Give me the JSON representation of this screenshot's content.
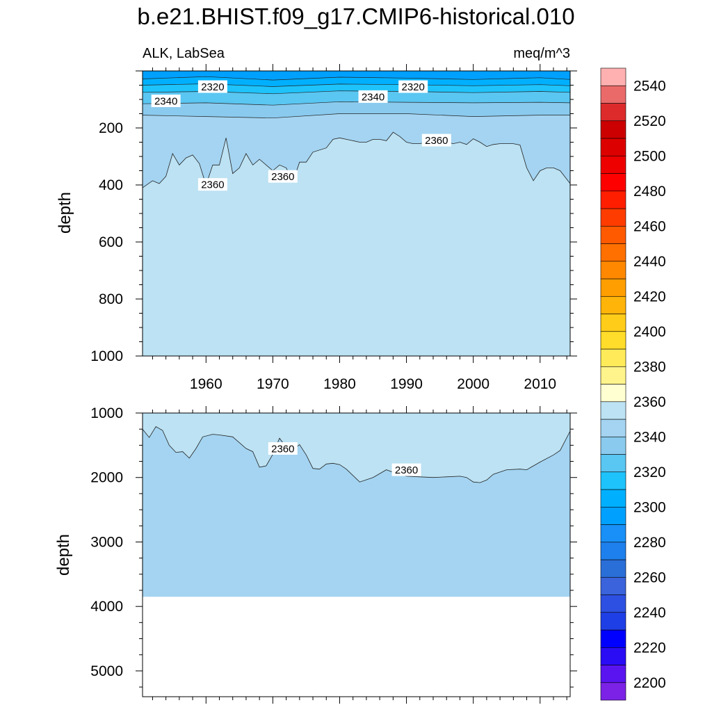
{
  "figure": {
    "title": "b.e21.BHIST.f09_g17.CMIP6-historical.010",
    "left_string": "ALK, LabSea",
    "right_string": "meq/m^3"
  },
  "colorbar": {
    "levels": [
      2200,
      2210,
      2220,
      2230,
      2240,
      2250,
      2260,
      2270,
      2280,
      2290,
      2300,
      2310,
      2320,
      2330,
      2340,
      2350,
      2360,
      2370,
      2380,
      2390,
      2400,
      2410,
      2420,
      2430,
      2440,
      2450,
      2460,
      2470,
      2480,
      2490,
      2500,
      2510,
      2520,
      2530,
      2540,
      2550
    ],
    "labels": [
      "2200",
      "2220",
      "2240",
      "2260",
      "2280",
      "2300",
      "2320",
      "2340",
      "2360",
      "2380",
      "2400",
      "2420",
      "2440",
      "2460",
      "2480",
      "2500",
      "2520",
      "2540"
    ],
    "colors": [
      "#7b22e6",
      "#5a14f0",
      "#2a0cf5",
      "#0000ff",
      "#1f3fe6",
      "#2d50e2",
      "#3a63dc",
      "#2a6ed8",
      "#1e80ec",
      "#1890f7",
      "#00a0ff",
      "#00b0ff",
      "#1ec3fb",
      "#5ac6f2",
      "#8acaee",
      "#a4d4f1",
      "#bce2f3",
      "#ffffd2",
      "#fff48c",
      "#ffeb5a",
      "#ffdd2a",
      "#ffcc1a",
      "#ffb40a",
      "#ff9e00",
      "#ff8800",
      "#ff7000",
      "#ff5a00",
      "#ff3c00",
      "#ff1e00",
      "#ff0000",
      "#ee0000",
      "#dd0000",
      "#cc0000",
      "#dd2b2b",
      "#ea6a6a",
      "#ffb0b0"
    ]
  },
  "chart_data": [
    {
      "type": "heatmap",
      "subtype": "depth-time contour (filled)",
      "xlabel": "",
      "ylabel": "depth",
      "xlim": [
        1950.5,
        2014.5
      ],
      "ylim": [
        1000,
        0
      ],
      "yreversed": true,
      "xticks": [
        1960,
        1970,
        1980,
        1990,
        2000,
        2010
      ],
      "xtick_labels": [
        "1960",
        "1970",
        "1980",
        "1990",
        "2000",
        "2010"
      ],
      "yticks": [
        200,
        400,
        600,
        800,
        1000
      ],
      "ytick_labels": [
        "200",
        "400",
        "600",
        "800",
        "1000"
      ],
      "background_level": 2360,
      "layers": [
        {
          "value": 2350,
          "years": [
            1950.5,
            1960,
            1970,
            1980,
            1990,
            2000,
            2010,
            2014.5
          ],
          "depth": [
            155,
            160,
            165,
            150,
            150,
            160,
            155,
            155
          ]
        },
        {
          "value": 2340,
          "years": [
            1950.5,
            1960,
            1970,
            1980,
            1990,
            2000,
            2010,
            2014.5
          ],
          "depth": [
            115,
            112,
            120,
            108,
            110,
            112,
            110,
            112
          ]
        },
        {
          "value": 2330,
          "years": [
            1950.5,
            1960,
            1970,
            1980,
            1990,
            2000,
            2010,
            2014.5
          ],
          "depth": [
            75,
            72,
            80,
            70,
            72,
            76,
            72,
            75
          ]
        },
        {
          "value": 2320,
          "years": [
            1950.5,
            1960,
            1970,
            1980,
            1990,
            2000,
            2010,
            2014.5
          ],
          "depth": [
            50,
            45,
            55,
            46,
            48,
            52,
            48,
            52
          ]
        },
        {
          "value": 2310,
          "years": [
            1950.5,
            1960,
            1970,
            1980,
            1990,
            2000,
            2010,
            2014.5
          ],
          "depth": [
            28,
            20,
            32,
            22,
            25,
            30,
            24,
            30
          ]
        }
      ],
      "contour_2360": {
        "years": [
          1950.5,
          1952,
          1953,
          1954,
          1955,
          1956,
          1957,
          1958,
          1959,
          1960,
          1961,
          1962,
          1963,
          1964,
          1965,
          1966,
          1967,
          1968,
          1969,
          1970,
          1971,
          1972,
          1973,
          1974,
          1975,
          1976,
          1978,
          1979,
          1980,
          1981,
          1982,
          1983,
          1984,
          1985,
          1986,
          1987,
          1988,
          1989,
          1990,
          1991,
          1992,
          1993,
          1994,
          1995,
          1996,
          1997,
          1998,
          1999,
          2000,
          2001,
          2002,
          2003,
          2004,
          2005,
          2006,
          2007,
          2008,
          2009,
          2010,
          2011,
          2012,
          2013,
          2014.5
        ],
        "depth": [
          410,
          385,
          395,
          370,
          290,
          330,
          305,
          295,
          325,
          400,
          330,
          330,
          235,
          360,
          340,
          290,
          330,
          310,
          330,
          350,
          330,
          340,
          390,
          320,
          320,
          285,
          270,
          240,
          235,
          240,
          245,
          250,
          250,
          240,
          240,
          245,
          215,
          230,
          250,
          255,
          255,
          250,
          245,
          240,
          250,
          255,
          250,
          258,
          238,
          250,
          265,
          258,
          255,
          255,
          255,
          260,
          340,
          385,
          350,
          340,
          340,
          350,
          395
        ]
      },
      "contour_labels": [
        {
          "text": "2320",
          "year": 1961,
          "depth": 55
        },
        {
          "text": "2340",
          "year": 1954,
          "depth": 105
        },
        {
          "text": "2340",
          "year": 1985,
          "depth": 90
        },
        {
          "text": "2320",
          "year": 1991,
          "depth": 55
        },
        {
          "text": "2360",
          "year": 1961,
          "depth": 398
        },
        {
          "text": "2360",
          "year": 1971.5,
          "depth": 370
        },
        {
          "text": "2360",
          "year": 1994.5,
          "depth": 243
        }
      ]
    },
    {
      "type": "heatmap",
      "subtype": "depth-time contour (filled)",
      "xlabel": "",
      "ylabel": "depth",
      "xlim": [
        1950.5,
        2014.5
      ],
      "ylim": [
        5400,
        1000
      ],
      "yreversed": true,
      "xticks": [
        1960,
        1970,
        1980,
        1990,
        2000,
        2010
      ],
      "yticks": [
        1000,
        2000,
        3000,
        4000,
        5000
      ],
      "ytick_labels": [
        "1000",
        "2000",
        "3000",
        "4000",
        "5000"
      ],
      "ocean_floor_depth": 3850,
      "fill_above": 2360,
      "fill_below": 2350,
      "contour_2360": {
        "years": [
          1950.5,
          1951.5,
          1952.5,
          1953.5,
          1954.5,
          1955.5,
          1956.5,
          1957.5,
          1958.5,
          1959.5,
          1961,
          1962,
          1964,
          1966,
          1967,
          1968,
          1969,
          1970,
          1971,
          1972,
          1973,
          1974,
          1975,
          1976,
          1977,
          1978,
          1979,
          1980,
          1981,
          1983,
          1985,
          1987,
          1988,
          1990,
          1992,
          1994,
          1996,
          1998,
          1999,
          2000,
          2001,
          2002,
          2003,
          2005,
          2007,
          2008,
          2010,
          2012,
          2013,
          2014.5
        ],
        "depth": [
          1250,
          1380,
          1210,
          1270,
          1500,
          1610,
          1600,
          1700,
          1550,
          1370,
          1330,
          1340,
          1370,
          1550,
          1600,
          1840,
          1820,
          1640,
          1390,
          1530,
          1570,
          1490,
          1650,
          1860,
          1870,
          1790,
          1780,
          1800,
          1870,
          2070,
          2000,
          1880,
          1920,
          1980,
          1990,
          2000,
          1990,
          1980,
          2000,
          2070,
          2080,
          2040,
          1950,
          1880,
          1870,
          1880,
          1760,
          1650,
          1580,
          1280
        ]
      },
      "contour_labels": [
        {
          "text": "2360",
          "year": 1971.5,
          "depth": 1550
        },
        {
          "text": "2360",
          "year": 1990,
          "depth": 1880
        }
      ]
    }
  ]
}
